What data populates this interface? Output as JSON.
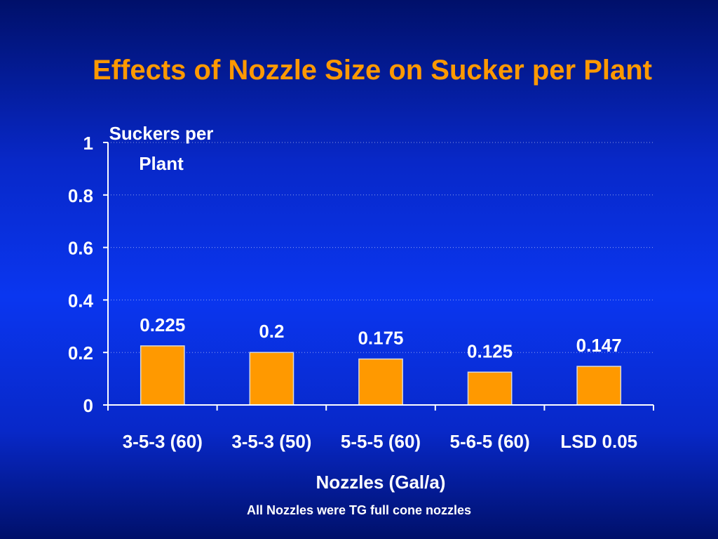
{
  "slide": {
    "title": "Effects of Nozzle Size on Sucker per Plant",
    "footnote": "All Nozzles were TG full cone nozzles"
  },
  "colors": {
    "bar": "#ff9900",
    "bar_edge": "#d9d9d9",
    "axis": "#ffffff",
    "title": "#ff9900",
    "text": "#ffffff",
    "background": "#0a36f0"
  },
  "chart_data": {
    "type": "bar",
    "title": "",
    "xlabel": "Nozzles (Gal/a)",
    "ylabel": "Suckers per Plant",
    "ylim": [
      0,
      1
    ],
    "yticks": [
      0,
      0.2,
      0.4,
      0.6,
      0.8,
      1
    ],
    "ytick_labels": [
      "0",
      "0.2",
      "0.4",
      "0.6",
      "0.8",
      "1"
    ],
    "categories": [
      "3-5-3 (60)",
      "3-5-3 (50)",
      "5-5-5 (60)",
      "5-6-5 (60)",
      "LSD 0.05"
    ],
    "values": [
      0.225,
      0.2,
      0.175,
      0.125,
      0.147
    ],
    "value_labels": [
      "0.225",
      "0.2",
      "0.175",
      "0.125",
      "0.147"
    ],
    "grid": true,
    "legend": "none"
  }
}
